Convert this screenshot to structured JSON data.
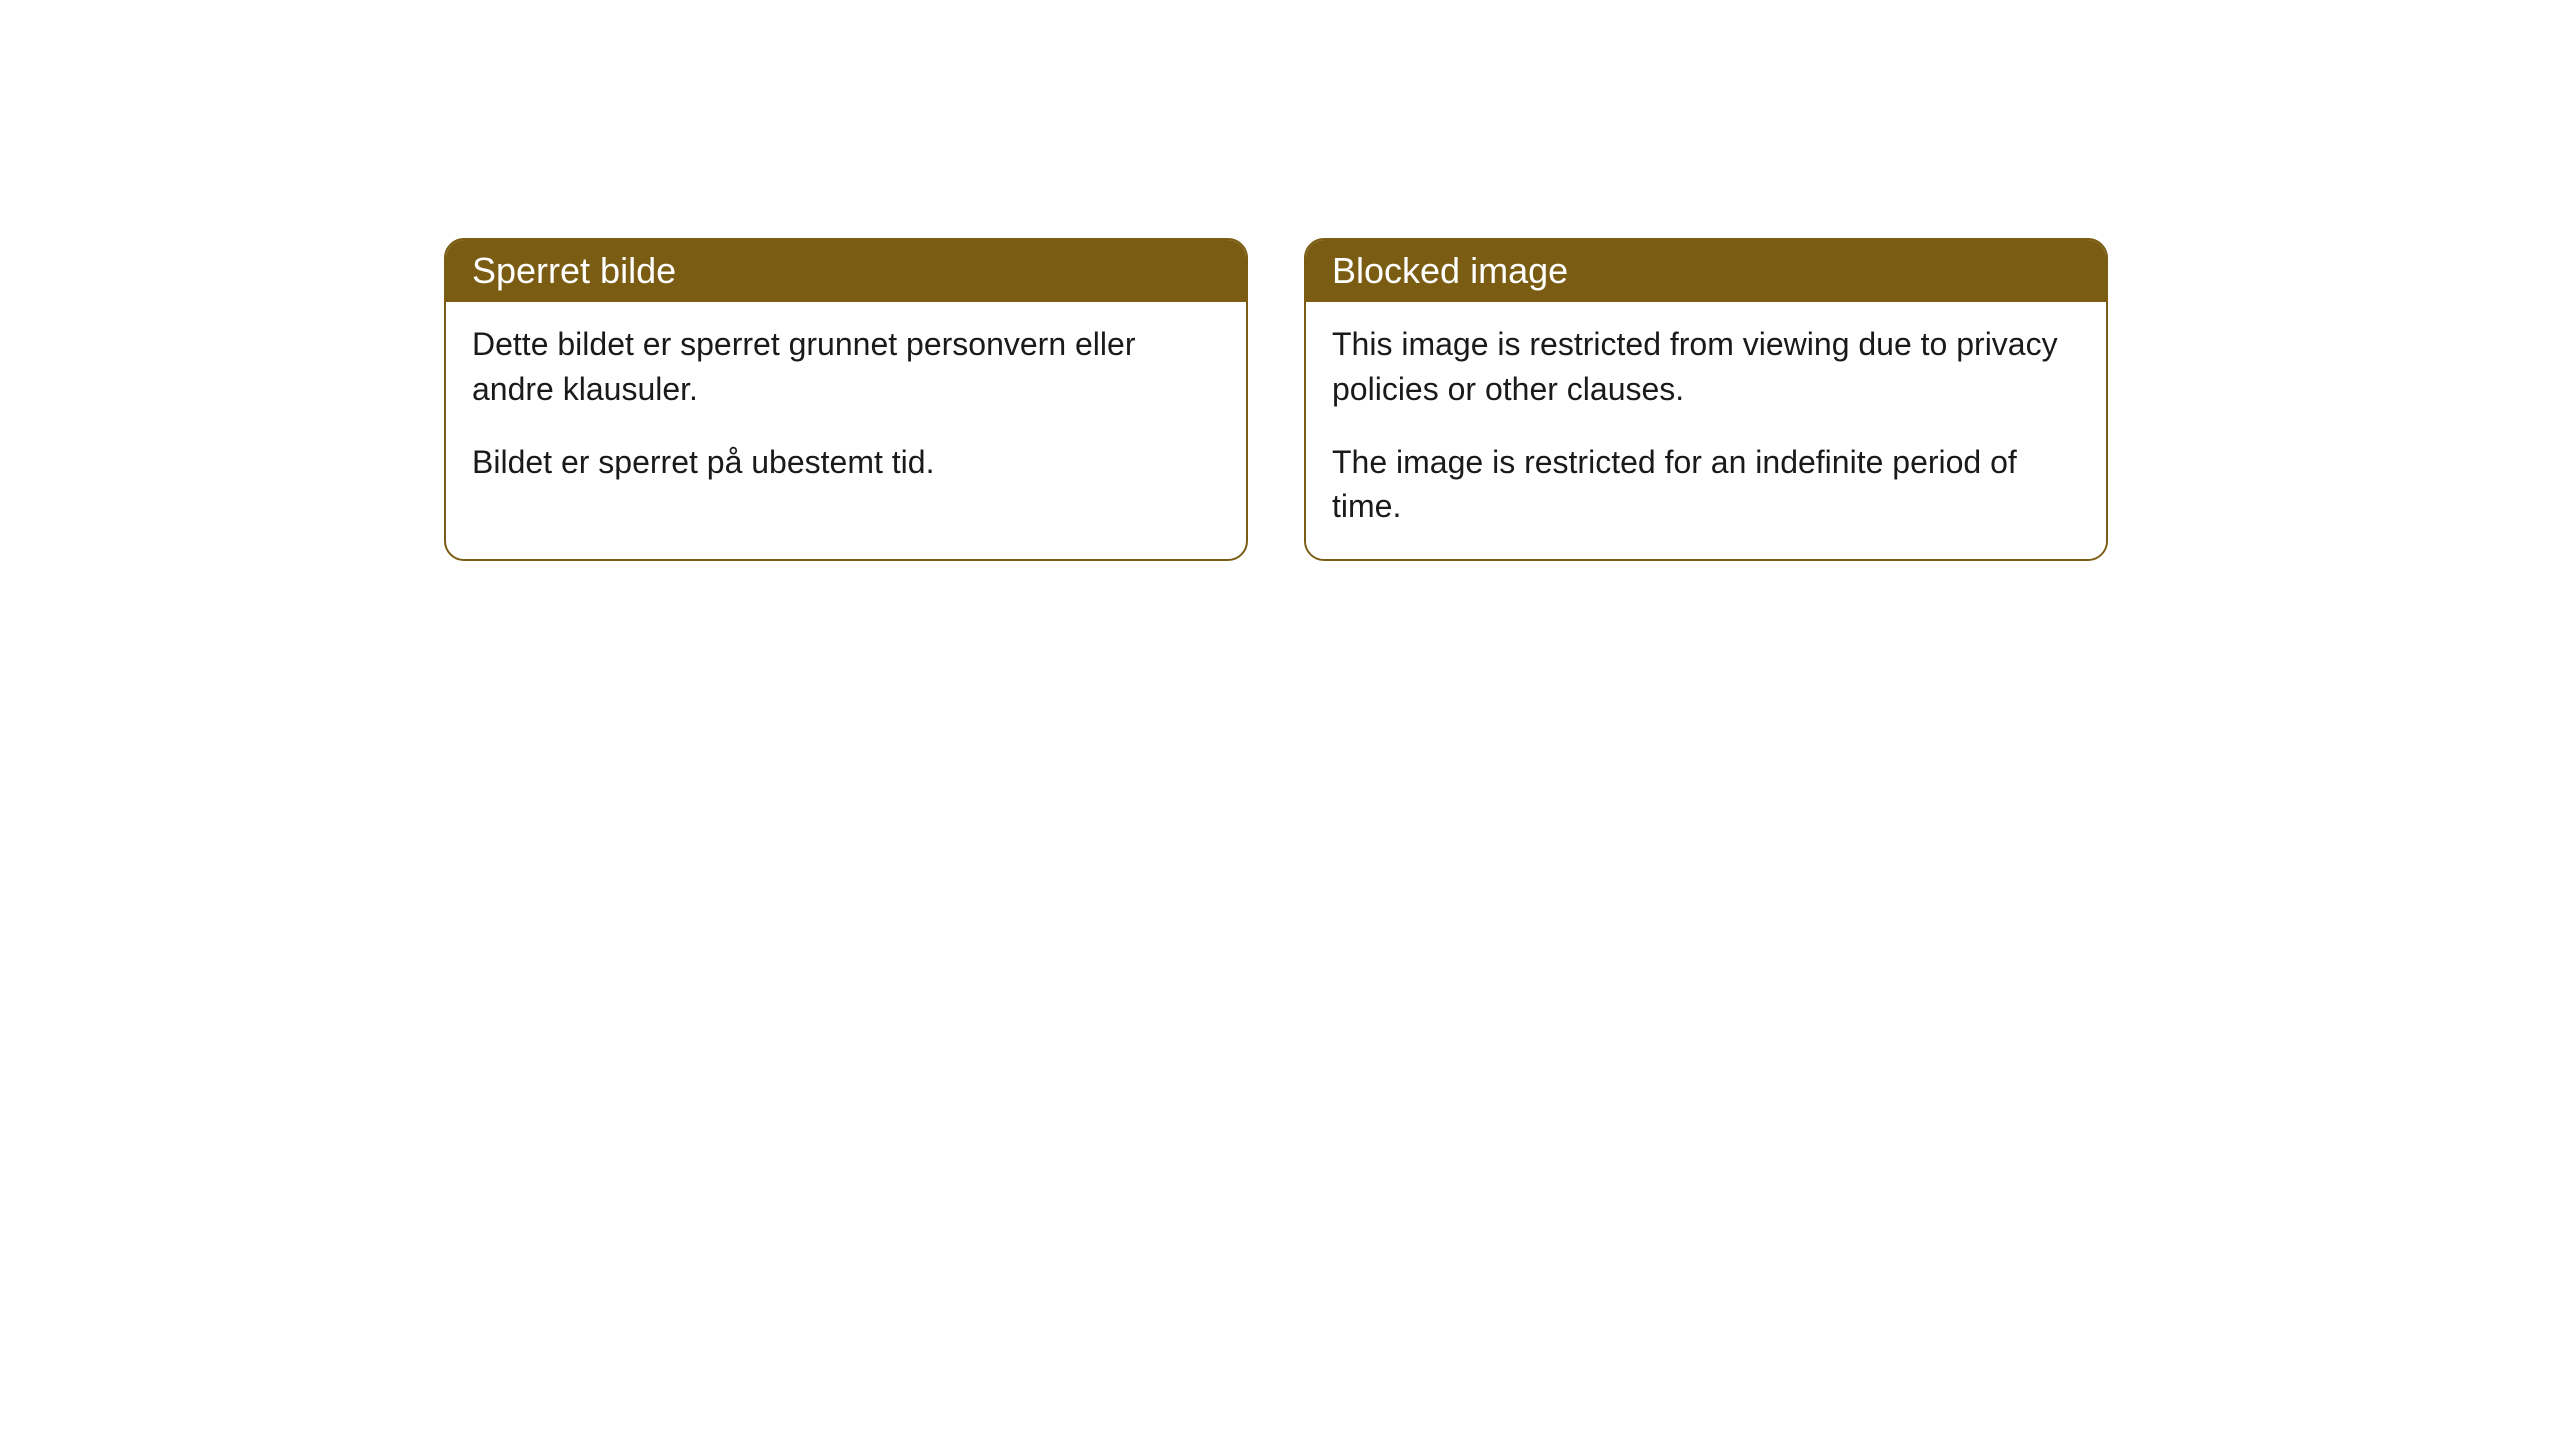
{
  "cards": [
    {
      "header": "Sperret bilde",
      "paragraph1": "Dette bildet er sperret grunnet personvern eller andre klausuler.",
      "paragraph2": "Bildet er sperret på ubestemt tid."
    },
    {
      "header": "Blocked image",
      "paragraph1": "This image is restricted from viewing due to privacy policies or other clauses.",
      "paragraph2": "The image is restricted for an indefinite period of time."
    }
  ],
  "style": {
    "bg_color": "#ffffff",
    "card_border_color": "#7a5d13",
    "header_bg_color": "#7a5d13",
    "header_text_color": "#ffffff",
    "body_text_color": "#1a1a1a",
    "border_radius": 20,
    "header_fontsize": 36,
    "body_fontsize": 32
  }
}
